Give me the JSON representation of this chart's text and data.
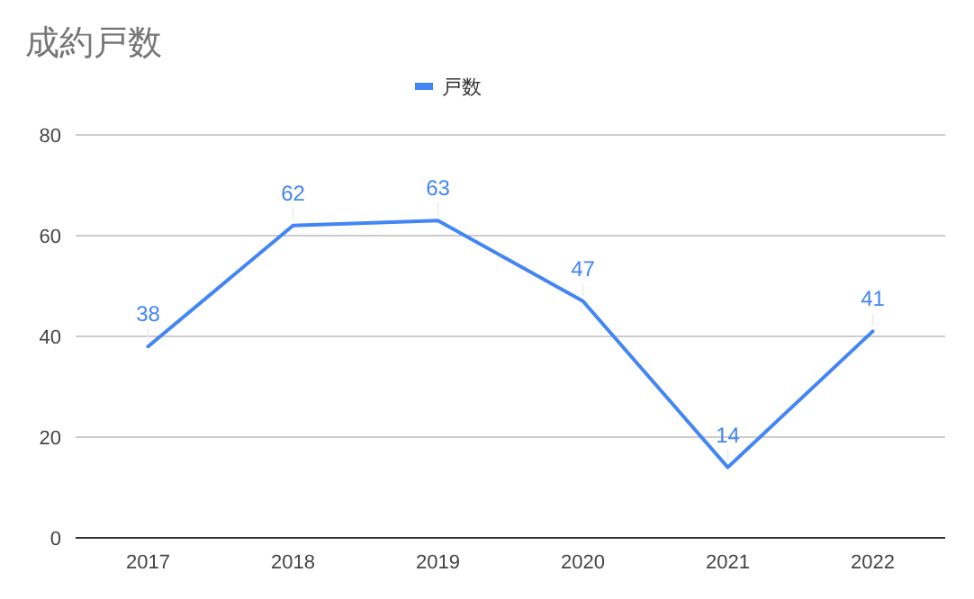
{
  "chart_data": {
    "type": "line",
    "title": "成約戸数",
    "categories": [
      "2017",
      "2018",
      "2019",
      "2020",
      "2021",
      "2022"
    ],
    "series": [
      {
        "name": "戸数",
        "color": "#4285f4",
        "values": [
          38,
          62,
          63,
          47,
          14,
          41
        ]
      }
    ],
    "ylim": [
      0,
      80
    ],
    "yticks": [
      0,
      20,
      40,
      60,
      80
    ],
    "grid": "y",
    "legend": "top",
    "data_labels": true
  }
}
